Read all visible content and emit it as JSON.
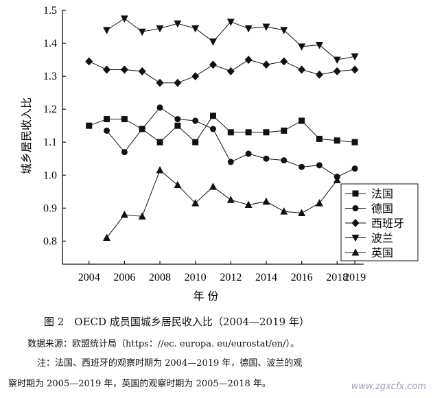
{
  "chart_data": {
    "type": "line",
    "title": "",
    "xlabel": "年 份",
    "ylabel": "城乡居民收入比",
    "xlim": [
      2002.5,
      2019.5
    ],
    "ylim": [
      0.73,
      1.5
    ],
    "xticks": [
      2004,
      2006,
      2008,
      2010,
      2012,
      2014,
      2016,
      2018,
      2019
    ],
    "xtick_labels": [
      "2004",
      "2006",
      "2008",
      "2010",
      "2012",
      "2014",
      "2016",
      "2018",
      "2019"
    ],
    "yticks": [
      0.8,
      0.9,
      1.0,
      1.1,
      1.2,
      1.3,
      1.4,
      1.5
    ],
    "ytick_labels": [
      "0.8",
      "0.9",
      "1.0",
      "1.1",
      "1.2",
      "1.3",
      "1.4",
      "1.5"
    ],
    "legend_position": "bottom-right",
    "grid": false,
    "series": [
      {
        "name": "法国",
        "marker": "square",
        "x": [
          2004,
          2005,
          2006,
          2007,
          2008,
          2009,
          2010,
          2011,
          2012,
          2013,
          2014,
          2015,
          2016,
          2017,
          2018,
          2019
        ],
        "y": [
          1.15,
          1.17,
          1.17,
          1.14,
          1.1,
          1.15,
          1.1,
          1.18,
          1.13,
          1.13,
          1.13,
          1.135,
          1.165,
          1.11,
          1.105,
          1.1
        ]
      },
      {
        "name": "德国",
        "marker": "circle",
        "x": [
          2005,
          2006,
          2007,
          2008,
          2009,
          2010,
          2011,
          2012,
          2013,
          2014,
          2015,
          2016,
          2017,
          2018,
          2019
        ],
        "y": [
          1.135,
          1.07,
          1.14,
          1.205,
          1.17,
          1.165,
          1.14,
          1.04,
          1.065,
          1.05,
          1.045,
          1.025,
          1.03,
          0.995,
          1.02
        ]
      },
      {
        "name": "西班牙",
        "marker": "diamond",
        "x": [
          2004,
          2005,
          2006,
          2007,
          2008,
          2009,
          2010,
          2011,
          2012,
          2013,
          2014,
          2015,
          2016,
          2017,
          2018,
          2019
        ],
        "y": [
          1.345,
          1.32,
          1.32,
          1.315,
          1.28,
          1.28,
          1.3,
          1.335,
          1.315,
          1.35,
          1.335,
          1.345,
          1.32,
          1.305,
          1.315,
          1.32
        ]
      },
      {
        "name": "波兰",
        "marker": "triangle-down",
        "x": [
          2005,
          2006,
          2007,
          2008,
          2009,
          2010,
          2011,
          2012,
          2013,
          2014,
          2015,
          2016,
          2017,
          2018,
          2019
        ],
        "y": [
          1.44,
          1.475,
          1.435,
          1.445,
          1.46,
          1.445,
          1.405,
          1.465,
          1.445,
          1.45,
          1.44,
          1.39,
          1.395,
          1.35,
          1.36
        ]
      },
      {
        "name": "英国",
        "marker": "triangle-up",
        "x": [
          2005,
          2006,
          2007,
          2008,
          2009,
          2010,
          2011,
          2012,
          2013,
          2014,
          2015,
          2016,
          2017,
          2018
        ],
        "y": [
          0.81,
          0.88,
          0.875,
          1.015,
          0.97,
          0.915,
          0.965,
          0.925,
          0.91,
          0.92,
          0.89,
          0.885,
          0.915,
          0.985
        ]
      }
    ]
  },
  "caption": {
    "figure": "图 2　OECD 成员国城乡居民收入比（2004—2019 年）",
    "source": "数据来源：欧盟统计局（https：//ec. europa. eu/eurostat/en/）。",
    "note_line1": "注：法国、西班牙的观察时期为 2004—2019 年，德国、波兰的观",
    "note_line2": "察时期为 2005—2019 年，英国的观察时期为 2005—2018 年。"
  },
  "watermark": "www.zgxcfx.com"
}
